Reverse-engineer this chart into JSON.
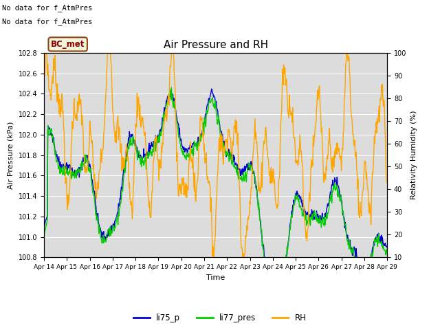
{
  "title": "Air Pressure and RH",
  "xlabel": "Time",
  "ylabel_left": "Air Pressure (kPa)",
  "ylabel_right": "Relativity Humidity (%)",
  "ylim_left": [
    100.8,
    102.8
  ],
  "ylim_right": [
    10,
    100
  ],
  "yticks_left": [
    100.8,
    101.0,
    101.2,
    101.4,
    101.6,
    101.8,
    102.0,
    102.2,
    102.4,
    102.6,
    102.8
  ],
  "yticks_right": [
    10,
    20,
    30,
    40,
    50,
    60,
    70,
    80,
    90,
    100
  ],
  "xtick_labels": [
    "Apr 14",
    "Apr 15",
    "Apr 16",
    "Apr 17",
    "Apr 18",
    "Apr 19",
    "Apr 20",
    "Apr 21",
    "Apr 22",
    "Apr 23",
    "Apr 24",
    "Apr 25",
    "Apr 26",
    "Apr 27",
    "Apr 28",
    "Apr 29"
  ],
  "color_blue": "#0000CC",
  "color_green": "#00CC00",
  "color_orange": "#FFA500",
  "bg_color": "#DCDCDC",
  "fig_bg": "#FFFFFF",
  "annotation1": "No data for f_AtmPres",
  "annotation2": "No data for f_AtmPres",
  "bc_met_label": "BC_met",
  "legend_labels": [
    "li75_p",
    "li77_pres",
    "RH"
  ],
  "legend_colors": [
    "#0000CC",
    "#00CC00",
    "#FFA500"
  ],
  "linewidth": 1.0
}
